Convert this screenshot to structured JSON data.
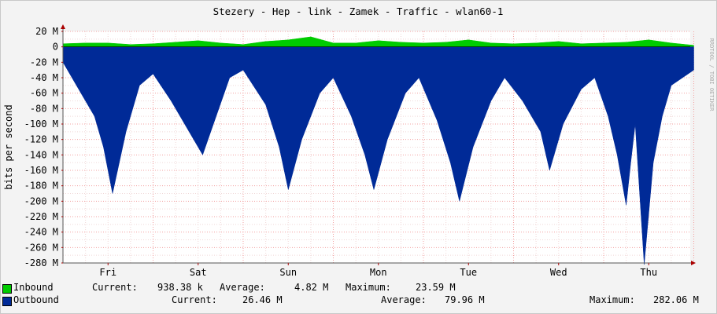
{
  "chart_data": {
    "type": "area",
    "title": "Stezery - Hep - link - Zamek - Traffic - wlan60-1",
    "ylabel": "bits per second",
    "watermark": "RRDTOOL / TOBI OETIKER",
    "unit": "bits/s",
    "ylim": [
      -280,
      20
    ],
    "y_ticks": [
      "20 M",
      "0",
      "-20 M",
      "-40 M",
      "-60 M",
      "-80 M",
      "-100 M",
      "-120 M",
      "-140 M",
      "-160 M",
      "-180 M",
      "-200 M",
      "-220 M",
      "-240 M",
      "-260 M",
      "-280 M"
    ],
    "x_ticks": [
      "Fri",
      "Sat",
      "Sun",
      "Mon",
      "Tue",
      "Wed",
      "Thu"
    ],
    "grid": true,
    "series": [
      {
        "name": "Inbound",
        "color": "#00cc00",
        "x_days": [
          0,
          0.25,
          0.5,
          0.75,
          1,
          1.25,
          1.5,
          1.75,
          2,
          2.25,
          2.5,
          2.75,
          3,
          3.25,
          3.5,
          3.75,
          4,
          4.25,
          4.5,
          4.75,
          5,
          5.25,
          5.5,
          5.75,
          6,
          6.25,
          6.5,
          6.75,
          7
        ],
        "values_M": [
          4,
          5,
          5,
          3,
          4,
          6,
          8,
          5,
          3,
          7,
          9,
          13,
          5,
          5,
          8,
          6,
          5,
          6,
          9,
          5,
          4,
          5,
          7,
          4,
          5,
          6,
          9,
          5,
          2
        ]
      },
      {
        "name": "Outbound",
        "color": "#002a97",
        "x_days": [
          0,
          0.2,
          0.35,
          0.45,
          0.55,
          0.7,
          0.85,
          1.0,
          1.2,
          1.4,
          1.55,
          1.7,
          1.85,
          2.0,
          2.25,
          2.4,
          2.5,
          2.65,
          2.85,
          3.0,
          3.2,
          3.35,
          3.45,
          3.6,
          3.8,
          3.95,
          4.15,
          4.3,
          4.4,
          4.55,
          4.75,
          4.9,
          5.1,
          5.3,
          5.4,
          5.55,
          5.75,
          5.9,
          6.05,
          6.15,
          6.25,
          6.3,
          6.35,
          6.45,
          6.55,
          6.65,
          6.75,
          7
        ],
        "values_M": [
          -20,
          -60,
          -90,
          -130,
          -190,
          -110,
          -50,
          -35,
          -70,
          -110,
          -140,
          -90,
          -40,
          -30,
          -75,
          -130,
          -185,
          -120,
          -60,
          -40,
          -90,
          -140,
          -185,
          -120,
          -60,
          -40,
          -95,
          -150,
          -200,
          -130,
          -70,
          -40,
          -70,
          -110,
          -160,
          -100,
          -55,
          -40,
          -90,
          -140,
          -205,
          -150,
          -100,
          -282,
          -150,
          -90,
          -50,
          -30
        ]
      }
    ],
    "legend": [
      {
        "name": "Inbound",
        "current": "938.38 k",
        "average": "4.82 M",
        "maximum": "23.59 M"
      },
      {
        "name": "Outbound",
        "current": "26.46 M",
        "average": "79.96 M",
        "maximum": "282.06 M"
      }
    ],
    "legend_labels": {
      "current": "Current:",
      "average": "Average:",
      "maximum": "Maximum:"
    }
  }
}
